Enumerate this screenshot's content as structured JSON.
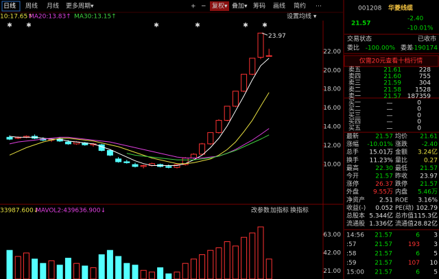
{
  "toolbar": {
    "periods": [
      "日线",
      "周线",
      "月线",
      "更多周期▾"
    ],
    "tools": [
      "+",
      "−",
      "复权▾",
      "叠加▾",
      "筹码",
      "画线",
      "简约",
      "⋯"
    ]
  },
  "chart_data": [
    {
      "type": "candlestick",
      "settings_label": "设置均线 ▾",
      "annotation": "23.97",
      "up_color": "#ff3232",
      "down_color": "#54ffff",
      "open": [
        12.9,
        12.8,
        12.9,
        13.0,
        12.7,
        12.6,
        12.7,
        12.4,
        12.2,
        12.3,
        12.1,
        12.1,
        11.5,
        10.6,
        10.3,
        10.0,
        9.8,
        9.9,
        10.0,
        9.8,
        9.7,
        10.0,
        10.7,
        11.1,
        12.2,
        13.4,
        14.7,
        16.2,
        17.8,
        19.6,
        21.4,
        21.57
      ],
      "high": [
        13.1,
        13.0,
        13.1,
        13.2,
        12.9,
        12.8,
        12.9,
        12.6,
        12.5,
        12.4,
        12.3,
        12.2,
        11.6,
        10.8,
        10.5,
        10.2,
        10.0,
        10.2,
        10.1,
        10.0,
        10.1,
        10.8,
        11.2,
        12.3,
        13.4,
        14.8,
        16.2,
        17.8,
        19.6,
        21.3,
        23.97,
        22.3
      ],
      "low": [
        12.6,
        12.7,
        12.8,
        12.7,
        12.5,
        12.4,
        12.4,
        12.1,
        12.1,
        12.0,
        11.9,
        11.4,
        10.9,
        10.2,
        10.1,
        9.7,
        9.6,
        9.8,
        9.7,
        9.6,
        9.6,
        9.9,
        10.6,
        11.0,
        12.1,
        13.3,
        14.6,
        16.1,
        17.7,
        19.5,
        21.2,
        21.57
      ],
      "close": [
        12.7,
        12.9,
        13.0,
        12.8,
        12.6,
        12.7,
        12.5,
        12.2,
        12.4,
        12.1,
        12.2,
        11.5,
        11.0,
        10.3,
        10.2,
        9.8,
        9.9,
        10.1,
        9.8,
        9.7,
        10.0,
        10.7,
        11.1,
        12.2,
        13.4,
        14.7,
        16.2,
        17.8,
        19.6,
        21.3,
        23.97,
        21.57
      ],
      "series": [
        {
          "color": "#ffffff",
          "values": [
            13.0,
            12.9,
            12.9,
            12.9,
            12.8,
            12.7,
            12.7,
            12.5,
            12.4,
            12.3,
            12.2,
            11.9,
            11.6,
            11.2,
            10.8,
            10.4,
            10.1,
            9.9,
            9.9,
            9.9,
            9.9,
            10.1,
            10.5,
            11.0,
            11.8,
            12.8,
            14.1,
            15.7,
            17.3,
            19.0,
            20.5,
            21.3
          ]
        },
        {
          "name": "10:17.65↑",
          "color": "#e8e040",
          "values": [
            11.0,
            11.4,
            11.8,
            12.1,
            12.4,
            12.6,
            12.8,
            12.8,
            12.7,
            12.6,
            12.5,
            12.3,
            12.1,
            11.9,
            11.6,
            11.3,
            11.0,
            10.7,
            10.5,
            10.3,
            10.1,
            10.1,
            10.2,
            10.4,
            10.6,
            11.0,
            11.6,
            12.4,
            13.5,
            14.7,
            16.2,
            17.65
          ]
        },
        {
          "name": "MA20:13.83↑",
          "color": "#e040e0",
          "values": [
            12.2,
            12.4,
            12.5,
            12.6,
            12.7,
            12.8,
            12.9,
            12.9,
            12.8,
            12.7,
            12.6,
            12.5,
            12.4,
            12.2,
            12.0,
            11.8,
            11.6,
            11.4,
            11.2,
            11.0,
            10.8,
            10.7,
            10.7,
            10.7,
            10.8,
            10.9,
            11.2,
            11.6,
            12.1,
            12.6,
            13.2,
            13.83
          ]
        },
        {
          "name": "MA30:13.15↑",
          "color": "#40d040",
          "values": [
            null,
            null,
            null,
            null,
            null,
            null,
            null,
            null,
            null,
            null,
            null,
            null,
            null,
            null,
            11.2,
            11.0,
            10.9,
            10.8,
            10.7,
            10.6,
            10.5,
            10.5,
            10.5,
            10.6,
            10.7,
            10.9,
            11.2,
            11.5,
            11.9,
            12.3,
            12.7,
            13.15
          ]
        }
      ],
      "ylim": [
        6,
        25.3
      ],
      "yticks": [
        {
          "value": 22,
          "label": "22.00"
        },
        {
          "value": 20,
          "label": "20.00"
        },
        {
          "value": 18,
          "label": "18.00"
        },
        {
          "value": 16,
          "label": "16.00"
        },
        {
          "value": 14,
          "label": "14.00"
        },
        {
          "value": 12,
          "label": "12.00"
        },
        {
          "value": 10,
          "label": "10.00"
        }
      ]
    },
    {
      "type": "bar",
      "legend": [
        {
          "text": "33987.600↓",
          "color": "#e8e040"
        },
        {
          "text": "MAVOL2:439636.900↓",
          "color": "#e040e0"
        }
      ],
      "buttons": [
        "改参数",
        "加指标",
        "换指标"
      ],
      "values": [
        45,
        38,
        42,
        35,
        30,
        33,
        28,
        36,
        30,
        27,
        25,
        40,
        45,
        38,
        30,
        28,
        22,
        20,
        25,
        18,
        20,
        30,
        35,
        40,
        45,
        48,
        55,
        50,
        60,
        65,
        72,
        35
      ],
      "ylim": [
        12,
        72
      ],
      "yticks": [
        {
          "value": 63,
          "label": "63.00"
        },
        {
          "value": 42,
          "label": "42.00"
        },
        {
          "value": 21,
          "label": "21.00"
        }
      ]
    }
  ],
  "quote": {
    "code": "001208",
    "name": "华菱线缆",
    "price": "21.57",
    "change": "-2.40",
    "change_pct": "-10.01%",
    "status": [
      "交易状态",
      "已收市"
    ],
    "ratio": [
      "委比",
      "-100.00%",
      "委差",
      "-190174"
    ],
    "promo": "仅需20元查看十档行情",
    "sell": [
      [
        "卖五",
        "21.61",
        "228"
      ],
      [
        "卖四",
        "21.60",
        "755"
      ],
      [
        "卖三",
        "21.59",
        "304"
      ],
      [
        "卖二",
        "21.58",
        "1528"
      ],
      [
        "卖一",
        "21.57",
        "187359"
      ]
    ],
    "buy": [
      [
        "买一",
        "—",
        "0"
      ],
      [
        "买二",
        "—",
        "0"
      ],
      [
        "买三",
        "—",
        "0"
      ],
      [
        "买四",
        "—",
        "0"
      ],
      [
        "买五",
        "—",
        "0"
      ]
    ],
    "stats": [
      {
        "cells": [
          "最新",
          "21.57",
          "均价",
          "21.61"
        ],
        "colors": [
          "#00d700",
          "#00d700"
        ]
      },
      {
        "cells": [
          "涨幅",
          "-10.01%",
          "涨跌",
          "-2.40"
        ],
        "colors": [
          "#00d700",
          "#00d700"
        ]
      },
      {
        "cells": [
          "总手",
          "15.01万",
          "金额",
          "3.24亿"
        ],
        "colors": [
          "#e0e0e0",
          "#e8e040"
        ]
      },
      {
        "cells": [
          "换手",
          "11.23%",
          "量比",
          "0.27"
        ],
        "colors": [
          "#e0e0e0",
          "#e8e040"
        ]
      },
      {
        "cells": [
          "最高",
          "22.30",
          "最低",
          "21.57"
        ],
        "colors": [
          "#00d700",
          "#00d700"
        ]
      },
      {
        "cells": [
          "今开",
          "21.57",
          "昨收",
          "23.97"
        ],
        "colors": [
          "#00d700",
          "#e0e0e0"
        ]
      },
      {
        "cells": [
          "涨停",
          "26.37",
          "跌停",
          "21.57"
        ],
        "colors": [
          "#ff3232",
          "#00d700"
        ]
      },
      {
        "cells": [
          "外盘",
          "9.55万",
          "内盘",
          "5.46万"
        ],
        "colors": [
          "#ff3232",
          "#00d700"
        ]
      },
      {
        "cells": [
          "净资产",
          "2.51",
          "ROE",
          "3.16%"
        ],
        "colors": [
          "#e0e0e0",
          "#e0e0e0"
        ]
      },
      {
        "cells": [
          "收益(-)",
          "0.052",
          "PE(动)",
          "102.79"
        ],
        "colors": [
          "#e0e0e0",
          "#e0e0e0"
        ]
      },
      {
        "cells": [
          "总股本",
          "5.344亿",
          "总市值",
          "115.3亿"
        ],
        "colors": [
          "#e0e0e0",
          "#e0e0e0"
        ]
      },
      {
        "cells": [
          "流通股",
          "1.336亿",
          "流通值",
          "28.82亿"
        ],
        "colors": [
          "#e0e0e0",
          "#e0e0e0"
        ]
      }
    ],
    "ticks": [
      [
        "14:56",
        "21.57",
        "6",
        "3"
      ],
      [
        ":57",
        "21.57",
        "193",
        "3"
      ],
      [
        ":58",
        "21.57",
        "6",
        "5"
      ],
      [
        ":59",
        "21.57",
        "107",
        "10"
      ],
      [
        "15:00",
        "21.57",
        "6",
        "5"
      ]
    ]
  }
}
